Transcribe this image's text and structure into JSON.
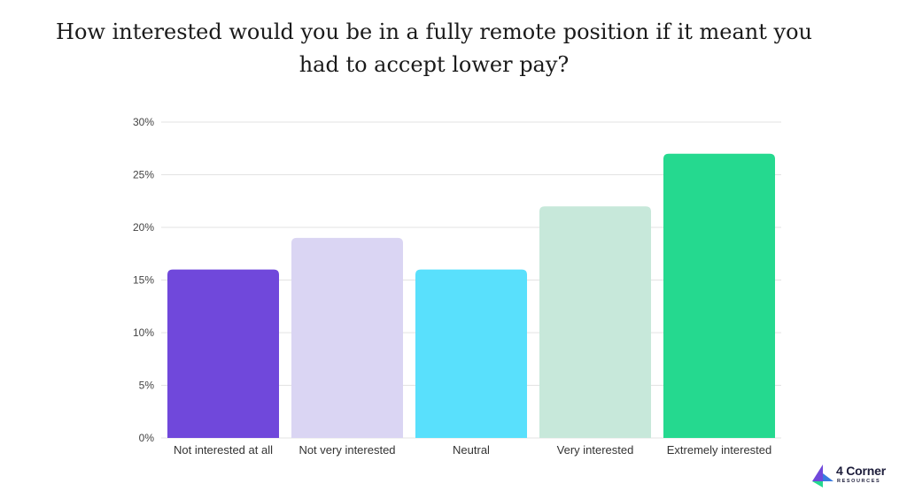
{
  "title": "How interested would you be in a fully remote position if it meant you had to accept lower pay?",
  "logo": {
    "name": "4 Corner",
    "subtitle": "RESOURCES"
  },
  "chart_data": {
    "type": "bar",
    "title": "How interested would you be in a fully remote position if it meant you had to accept lower pay?",
    "categories": [
      "Not interested at all",
      "Not very interested",
      "Neutral",
      "Very interested",
      "Extremely interested"
    ],
    "values": [
      16,
      19,
      16,
      22,
      27
    ],
    "colors": [
      "#7048db",
      "#dad5f3",
      "#59e0fc",
      "#c7e8da",
      "#25d98f"
    ],
    "ylim": [
      0,
      30
    ],
    "yticks": [
      0,
      5,
      10,
      15,
      20,
      25,
      30
    ],
    "ytick_labels": [
      "0%",
      "5%",
      "10%",
      "15%",
      "20%",
      "25%",
      "30%"
    ],
    "xlabel": "",
    "ylabel": "",
    "grid": true,
    "legend": false
  }
}
